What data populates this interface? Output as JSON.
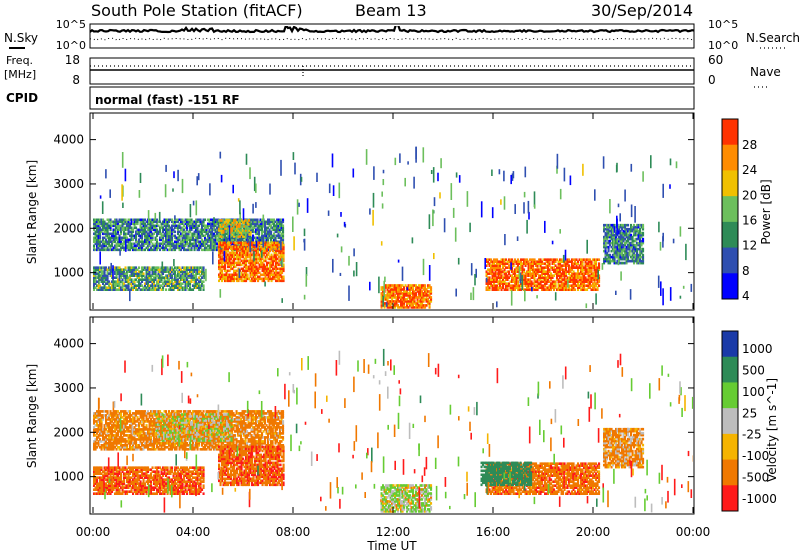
{
  "header": {
    "station": "South Pole Station (fitACF)",
    "beam": "Beam 13",
    "date": "30/Sep/2014"
  },
  "nsky_panel": {
    "left_label": "N.Sky",
    "right_label": "N.Search",
    "left_ticks": [
      "10^5",
      "10^0"
    ],
    "right_ticks": [
      "10^5",
      "10^0"
    ]
  },
  "freq_panel": {
    "left_label_line1": "Freq.",
    "left_label_line2": "[MHz]",
    "left_ticks": [
      "18",
      "8"
    ],
    "right_label": "Nave",
    "right_ticks": [
      "60",
      "0"
    ]
  },
  "cpid_panel": {
    "label": "CPID",
    "mode_text": "normal (fast) -151 RF"
  },
  "time_axis": {
    "label": "Time UT",
    "ticks": [
      "00:00",
      "04:00",
      "08:00",
      "12:00",
      "16:00",
      "20:00",
      "00:00"
    ]
  },
  "colors": {
    "power_scale": [
      "#0000ff",
      "#2f4fb0",
      "#2e8b57",
      "#6cbf5c",
      "#f0c000",
      "#ff8c00",
      "#ff3300"
    ],
    "velocity_scale": [
      "#1a3aa8",
      "#2e8b57",
      "#66cc33",
      "#bdbdbd",
      "#f5b400",
      "#f07800",
      "#ff1a1a"
    ]
  },
  "chart_data": [
    {
      "type": "heatmap",
      "title": "",
      "xlabel": "Time UT",
      "ylabel": "Slant Range [km]",
      "xlim": [
        0,
        24
      ],
      "ylim": [
        180,
        4600
      ],
      "y_ticks": [
        "4000",
        "3000",
        "2000",
        "1000"
      ],
      "colorbar": {
        "label": "Power [dB]",
        "ticks": [
          "28",
          "24",
          "20",
          "16",
          "12",
          "8",
          "4"
        ],
        "range": [
          0,
          30
        ]
      },
      "echo_regions": [
        {
          "t_start": 0.0,
          "t_end": 7.6,
          "range_low": 1500,
          "range_high": 2200,
          "power_db": 10
        },
        {
          "t_start": 0.0,
          "t_end": 4.4,
          "range_low": 600,
          "range_high": 1100,
          "power_db": 12
        },
        {
          "t_start": 5.0,
          "t_end": 6.3,
          "range_low": 1800,
          "range_high": 2200,
          "power_db": 18
        },
        {
          "t_start": 5.0,
          "t_end": 7.6,
          "range_low": 800,
          "range_high": 1700,
          "power_db": 25
        },
        {
          "t_start": 11.5,
          "t_end": 13.5,
          "range_low": 200,
          "range_high": 700,
          "power_db": 25
        },
        {
          "t_start": 15.7,
          "t_end": 20.2,
          "range_low": 600,
          "range_high": 1300,
          "power_db": 26
        },
        {
          "t_start": 20.4,
          "t_end": 22.0,
          "range_low": 1200,
          "range_high": 2100,
          "power_db": 10
        }
      ]
    },
    {
      "type": "heatmap",
      "title": "",
      "xlabel": "Time UT",
      "ylabel": "Slant Range [km]",
      "xlim": [
        0,
        24
      ],
      "ylim": [
        180,
        4600
      ],
      "y_ticks": [
        "4000",
        "3000",
        "2000",
        "1000"
      ],
      "colorbar": {
        "label": "Velocity [m s^-1]",
        "ticks": [
          "1000",
          "500",
          "100",
          "25",
          "-25",
          "-100",
          "-500",
          "-1000"
        ]
      },
      "echo_regions": [
        {
          "t_start": 0.0,
          "t_end": 7.6,
          "range_low": 1600,
          "range_high": 2500,
          "velocity": -150
        },
        {
          "t_start": 2.5,
          "t_end": 5.5,
          "range_low": 1800,
          "range_high": 2400,
          "velocity": 0
        },
        {
          "t_start": 0.0,
          "t_end": 4.4,
          "range_low": 600,
          "range_high": 1200,
          "velocity": -250
        },
        {
          "t_start": 5.0,
          "t_end": 7.6,
          "range_low": 800,
          "range_high": 1700,
          "velocity": -250
        },
        {
          "t_start": 11.5,
          "t_end": 13.5,
          "range_low": 200,
          "range_high": 800,
          "velocity": 60
        },
        {
          "t_start": 15.7,
          "t_end": 20.2,
          "range_low": 600,
          "range_high": 1300,
          "velocity": -200
        },
        {
          "t_start": 15.5,
          "t_end": 17.5,
          "range_low": 800,
          "range_high": 1300,
          "velocity": 600
        },
        {
          "t_start": 20.4,
          "t_end": 22.0,
          "range_low": 1200,
          "range_high": 2100,
          "velocity": -100
        }
      ]
    }
  ]
}
